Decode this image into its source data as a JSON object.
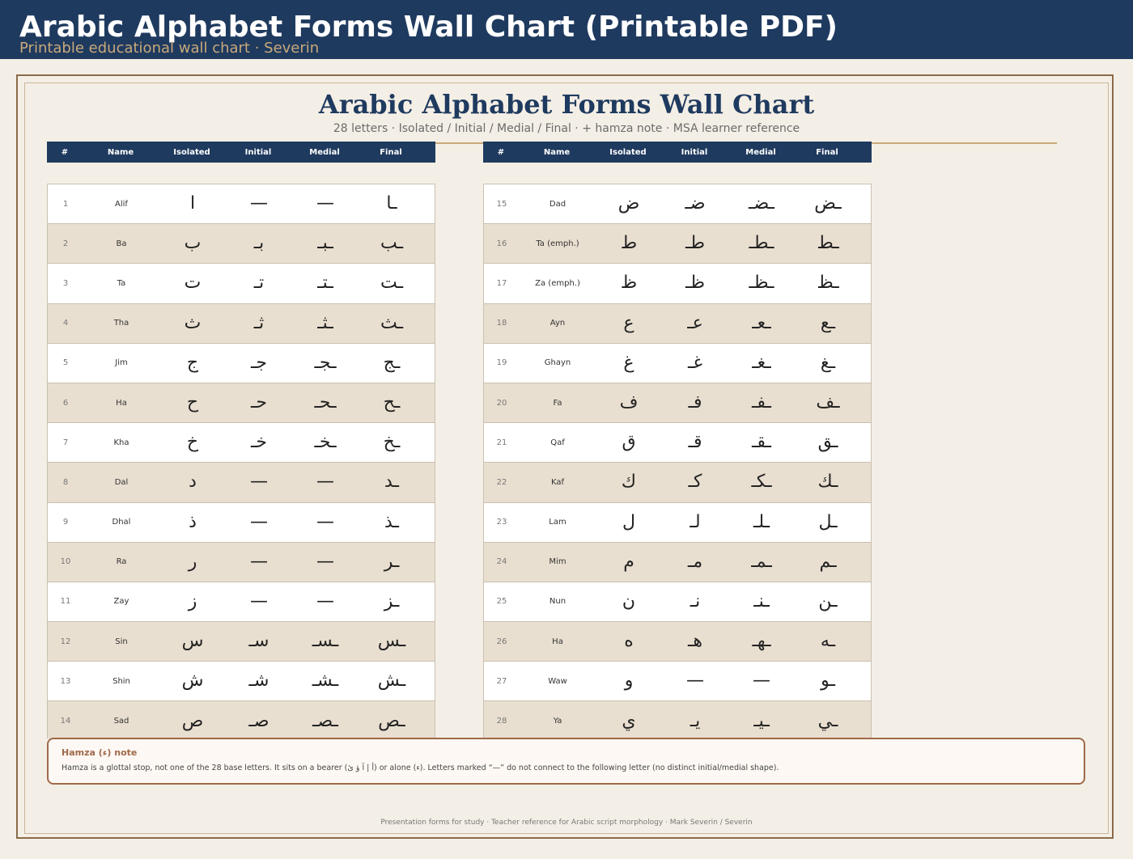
{
  "header": {
    "title": "Arabic Alphabet Forms Wall Chart (Printable PDF)",
    "subtitle": "Printable educational wall chart  ·  Severin"
  },
  "chart": {
    "title": "Arabic Alphabet Forms Wall Chart",
    "subtitle": "28 letters · Isolated / Initial / Medial / Final  ·  + hamza note  ·  MSA learner reference"
  },
  "columns": [
    "#",
    "Name",
    "Isolated",
    "Initial",
    "Medial",
    "Final"
  ],
  "left_rows": [
    {
      "n": "1",
      "name": "Alif",
      "iso": "ا",
      "ini": "—",
      "med": "—",
      "fin": "ـا"
    },
    {
      "n": "2",
      "name": "Ba",
      "iso": "ب",
      "ini": "بـ",
      "med": "ـبـ",
      "fin": "ـب"
    },
    {
      "n": "3",
      "name": "Ta",
      "iso": "ت",
      "ini": "تـ",
      "med": "ـتـ",
      "fin": "ـت"
    },
    {
      "n": "4",
      "name": "Tha",
      "iso": "ث",
      "ini": "ثـ",
      "med": "ـثـ",
      "fin": "ـث"
    },
    {
      "n": "5",
      "name": "Jim",
      "iso": "ج",
      "ini": "جـ",
      "med": "ـجـ",
      "fin": "ـج"
    },
    {
      "n": "6",
      "name": "Ha",
      "iso": "ح",
      "ini": "حـ",
      "med": "ـحـ",
      "fin": "ـح"
    },
    {
      "n": "7",
      "name": "Kha",
      "iso": "خ",
      "ini": "خـ",
      "med": "ـخـ",
      "fin": "ـخ"
    },
    {
      "n": "8",
      "name": "Dal",
      "iso": "د",
      "ini": "—",
      "med": "—",
      "fin": "ـد"
    },
    {
      "n": "9",
      "name": "Dhal",
      "iso": "ذ",
      "ini": "—",
      "med": "—",
      "fin": "ـذ"
    },
    {
      "n": "10",
      "name": "Ra",
      "iso": "ر",
      "ini": "—",
      "med": "—",
      "fin": "ـر"
    },
    {
      "n": "11",
      "name": "Zay",
      "iso": "ز",
      "ini": "—",
      "med": "—",
      "fin": "ـز"
    },
    {
      "n": "12",
      "name": "Sin",
      "iso": "س",
      "ini": "سـ",
      "med": "ـسـ",
      "fin": "ـس"
    },
    {
      "n": "13",
      "name": "Shin",
      "iso": "ش",
      "ini": "شـ",
      "med": "ـشـ",
      "fin": "ـش"
    },
    {
      "n": "14",
      "name": "Sad",
      "iso": "ص",
      "ini": "صـ",
      "med": "ـصـ",
      "fin": "ـص"
    }
  ],
  "right_rows": [
    {
      "n": "15",
      "name": "Dad",
      "iso": "ض",
      "ini": "ضـ",
      "med": "ـضـ",
      "fin": "ـض"
    },
    {
      "n": "16",
      "name": "Ta (emph.)",
      "iso": "ط",
      "ini": "طـ",
      "med": "ـطـ",
      "fin": "ـط"
    },
    {
      "n": "17",
      "name": "Za (emph.)",
      "iso": "ظ",
      "ini": "ظـ",
      "med": "ـظـ",
      "fin": "ـظ"
    },
    {
      "n": "18",
      "name": "Ayn",
      "iso": "ع",
      "ini": "عـ",
      "med": "ـعـ",
      "fin": "ـع"
    },
    {
      "n": "19",
      "name": "Ghayn",
      "iso": "غ",
      "ini": "غـ",
      "med": "ـغـ",
      "fin": "ـغ"
    },
    {
      "n": "20",
      "name": "Fa",
      "iso": "ف",
      "ini": "فـ",
      "med": "ـفـ",
      "fin": "ـف"
    },
    {
      "n": "21",
      "name": "Qaf",
      "iso": "ق",
      "ini": "قـ",
      "med": "ـقـ",
      "fin": "ـق"
    },
    {
      "n": "22",
      "name": "Kaf",
      "iso": "ك",
      "ini": "كـ",
      "med": "ـكـ",
      "fin": "ـك"
    },
    {
      "n": "23",
      "name": "Lam",
      "iso": "ل",
      "ini": "لـ",
      "med": "ـلـ",
      "fin": "ـل"
    },
    {
      "n": "24",
      "name": "Mim",
      "iso": "م",
      "ini": "مـ",
      "med": "ـمـ",
      "fin": "ـم"
    },
    {
      "n": "25",
      "name": "Nun",
      "iso": "ن",
      "ini": "نـ",
      "med": "ـنـ",
      "fin": "ـن"
    },
    {
      "n": "26",
      "name": "Ha",
      "iso": "ه",
      "ini": "هـ",
      "med": "ـهـ",
      "fin": "ـه"
    },
    {
      "n": "27",
      "name": "Waw",
      "iso": "و",
      "ini": "—",
      "med": "—",
      "fin": "ـو"
    },
    {
      "n": "28",
      "name": "Ya",
      "iso": "ي",
      "ini": "يـ",
      "med": "ـيـ",
      "fin": "ـي"
    }
  ],
  "note": {
    "title": "Hamza (ء) note",
    "body": "Hamza is a glottal stop, not one of the 28 base letters. It sits on a bearer (أ | آ ؤ ئ) or alone (ء). Letters marked “—” do not connect to the following letter (no distinct initial/medial shape)."
  },
  "footer": "Presentation forms for study · Teacher reference for Arabic script morphology · Mark Severin / Severin",
  "colors": {
    "navy": "#1f3a5f",
    "gold": "#c8a97a",
    "row_alt": "#e9dfd0",
    "note_accent": "#a0694a"
  }
}
